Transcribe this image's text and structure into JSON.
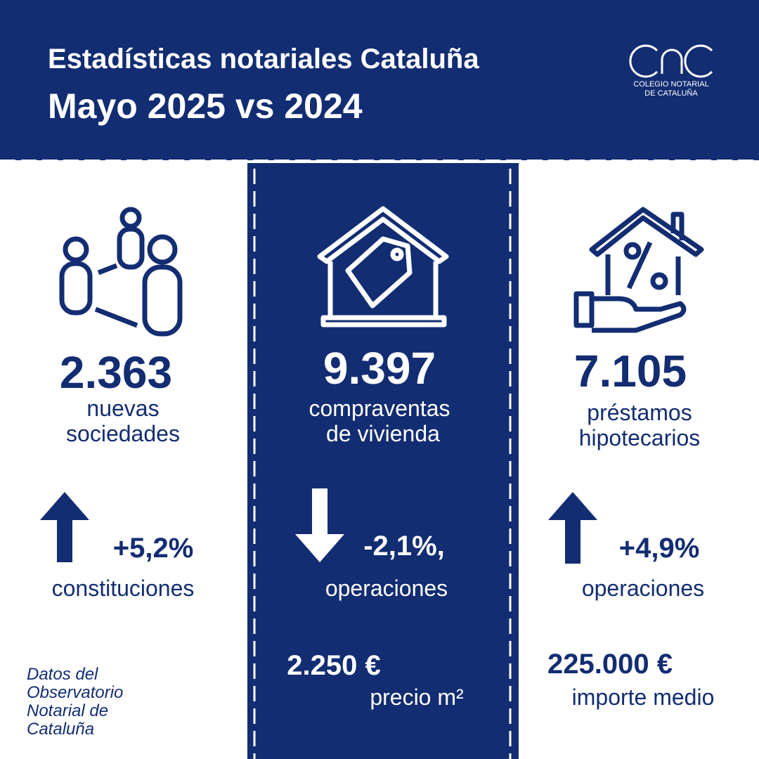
{
  "header": {
    "title": "Estadísticas notariales Cataluña",
    "subtitle": "Mayo 2025 vs 2024",
    "logo": [
      "COLEGIO NOTARIAL",
      "DE CATALUÑA"
    ]
  },
  "columns": [
    {
      "figure": "2.363",
      "label": [
        "nuevas",
        "sociedades"
      ],
      "change": "+5,2%",
      "change_label": "constituciones"
    },
    {
      "figure": "9.397",
      "label": [
        "compraventas",
        "de vivienda"
      ],
      "change": "-2,1%,",
      "change_label": "operaciones",
      "secondary": "2.250 €",
      "secondary_label": "precio m²"
    },
    {
      "figure": "7.105",
      "label": [
        "préstamos",
        "hipotecarios"
      ],
      "change": "+4,9%",
      "change_label": "operaciones",
      "secondary": "225.000 €",
      "secondary_label": "importe medio"
    }
  ],
  "footnote": [
    "Datos del",
    "Observatorio",
    "Notarial de",
    "Cataluña"
  ]
}
